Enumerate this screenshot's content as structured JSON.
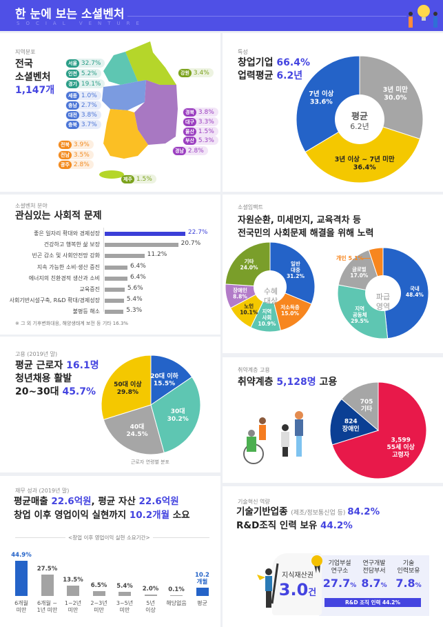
{
  "header": {
    "title": "한 눈에 보는 소셜벤처",
    "subtitle": "SOCIAL VENTURE"
  },
  "region": {
    "label": "지역분포",
    "title1": "전국",
    "title2": "소셜벤처",
    "count": "1,147개",
    "items": [
      {
        "name": "서울",
        "value": "32.7%",
        "color": "#2a9d87"
      },
      {
        "name": "인천",
        "value": "5.2%",
        "color": "#2a9d87"
      },
      {
        "name": "경기",
        "value": "19.1%",
        "color": "#2a9d87"
      },
      {
        "name": "세종",
        "value": "1.0%",
        "color": "#4a74d6"
      },
      {
        "name": "충남",
        "value": "2.7%",
        "color": "#4a74d6"
      },
      {
        "name": "대전",
        "value": "3.8%",
        "color": "#4a74d6"
      },
      {
        "name": "충북",
        "value": "3.7%",
        "color": "#4a74d6"
      },
      {
        "name": "전북",
        "value": "3.9%",
        "color": "#f28a1e"
      },
      {
        "name": "전남",
        "value": "3.5%",
        "color": "#f28a1e"
      },
      {
        "name": "광주",
        "value": "2.8%",
        "color": "#f28a1e"
      },
      {
        "name": "강원",
        "value": "3.4%",
        "color": "#7ba21c"
      },
      {
        "name": "경북",
        "value": "3.8%",
        "color": "#9b3fc0"
      },
      {
        "name": "대구",
        "value": "3.3%",
        "color": "#9b3fc0"
      },
      {
        "name": "울산",
        "value": "1.5%",
        "color": "#9b3fc0"
      },
      {
        "name": "부산",
        "value": "5.3%",
        "color": "#9b3fc0"
      },
      {
        "name": "경남",
        "value": "2.8%",
        "color": "#9b3fc0"
      },
      {
        "name": "제주",
        "value": "1.5%",
        "color": "#7ba21c"
      }
    ]
  },
  "traits": {
    "label": "특성",
    "line1a": "창업기업 ",
    "line1b": "66.4%",
    "line2a": "업력평균 ",
    "line2b": "6.2년",
    "center1": "평균",
    "center2": "6.2년"
  },
  "issues": {
    "label": "소셜벤처 분야",
    "title": "관심있는 사회적 문제",
    "note": "※ 그 외 기후변화대응, 해양생태계 보전 등 기타 16.3%",
    "items": [
      {
        "label": "좋은 일자리 확대와 경제성장",
        "value": 22.7
      },
      {
        "label": "건강하고 행복한 삶 보장",
        "value": 20.7
      },
      {
        "label": "빈곤 감소 및 사회안전망 강화",
        "value": 11.2
      },
      {
        "label": "지속 가능한 소비·생산 증진",
        "value": 6.4
      },
      {
        "label": "에너지의 친환경적 생산과 소비",
        "value": 6.4
      },
      {
        "label": "교육증진",
        "value": 5.6
      },
      {
        "label": "사회기반시설구축, R&D 확대/경제성장",
        "value": 5.4
      },
      {
        "label": "불평등 해소",
        "value": 5.3
      }
    ]
  },
  "impact": {
    "label": "소셜임팩트",
    "title1": "자원순환, 미세먼지, 교육격차 등",
    "title2": "전국민의 사회문제 해결을 위해 노력",
    "center_a": [
      "수혜",
      "대상"
    ],
    "center_b": [
      "파급",
      "영역"
    ],
    "personal_label": "개인 5.1%"
  },
  "employ": {
    "label": "고용 (2019년 말)",
    "l1a": "평균 근로자 ",
    "l1b": "16.1명",
    "l2": "청년채용 활발",
    "l3a": "20~30대 ",
    "l3b": "45.7%",
    "caption": "근로자 연령별 분포"
  },
  "vuln": {
    "label": "취약계층 고용",
    "ta": "취약계층 ",
    "tb": "5,128명",
    "tc": " 고용"
  },
  "finance": {
    "label": "재무 성과 (2019년 말)",
    "l1a": "평균매출 ",
    "l1b": "22.6억원",
    "l1c": ", 평균 자산 ",
    "l1d": "22.6억원",
    "l2a": "창업 이후 영업이익 실현까지 ",
    "l2b": "10.2개월",
    "l2c": " 소요",
    "chart_title": "<창업 이후 영업이익 실현 소요기간>"
  },
  "tech": {
    "label": "기술혁신 역량",
    "l1a": "기술기반업종 ",
    "l1b": "(제조/정보통신업 등) ",
    "l1c": "84.2%",
    "l2a": "R&D조직 인력 보유 ",
    "l2b": "44.2%",
    "ip_label": "지식재산권",
    "ip_value": "3.0",
    "ip_unit": "건",
    "cols": [
      {
        "label1": "기업부설",
        "label2": "연구소",
        "value": "27.7",
        "unit": "%"
      },
      {
        "label1": "연구개발",
        "label2": "전담부서",
        "value": "8.7",
        "unit": "%"
      },
      {
        "label1": "기술",
        "label2": "인력보유",
        "value": "7.8",
        "unit": "%"
      }
    ],
    "bar": "R&D 조직 인력 44.2%"
  },
  "chart_data": [
    {
      "type": "pie",
      "id": "tenure",
      "title": "업력",
      "slices": [
        {
          "lines": [
            "3년 미만",
            "30.0%"
          ],
          "value": 30.0,
          "color": "#a6a6a6"
        },
        {
          "lines": [
            "3년 이상 ~ 7년 미만",
            "36.4%"
          ],
          "value": 36.4,
          "color": "#f4c800",
          "dark": true
        },
        {
          "lines": [
            "7년 이상",
            "33.6%"
          ],
          "value": 33.6,
          "color": "#2463c8"
        }
      ]
    },
    {
      "type": "pie",
      "id": "beneficiary",
      "title": "수혜대상",
      "slices": [
        {
          "lines": [
            "일반",
            "대중",
            "31.2%"
          ],
          "value": 31.2,
          "color": "#2463c8"
        },
        {
          "lines": [
            "저소득층",
            "15.0%"
          ],
          "value": 15.0,
          "color": "#f7861f"
        },
        {
          "lines": [
            "지역",
            "사회",
            "10.9%"
          ],
          "value": 10.9,
          "color": "#5ec6b2"
        },
        {
          "lines": [
            "노인",
            "10.1%"
          ],
          "value": 10.1,
          "color": "#f4c800",
          "dark": true
        },
        {
          "lines": [
            "장애인",
            "8.8%"
          ],
          "value": 8.8,
          "color": "#b27bc8"
        },
        {
          "lines": [
            "기타",
            "24.0%"
          ],
          "value": 24.0,
          "color": "#7a9e2a"
        }
      ]
    },
    {
      "type": "pie",
      "id": "ripple",
      "title": "파급영역",
      "slices": [
        {
          "lines": [
            "국내",
            "48.4%"
          ],
          "value": 48.4,
          "color": "#2463c8"
        },
        {
          "lines": [
            "지역",
            "공동체",
            "29.5%"
          ],
          "value": 29.5,
          "color": "#5ec6b2"
        },
        {
          "lines": [
            "글로벌",
            "17.0%"
          ],
          "value": 17.0,
          "color": "#a6a6a6"
        },
        {
          "lines": [],
          "value": 5.1,
          "color": "#f7861f"
        }
      ]
    },
    {
      "type": "pie",
      "id": "age",
      "title": "근로자 연령별 분포",
      "slices": [
        {
          "lines": [
            "20대 이하",
            "15.5%"
          ],
          "value": 15.5,
          "color": "#2463c8"
        },
        {
          "lines": [
            "30대",
            "30.2%"
          ],
          "value": 30.2,
          "color": "#5ec6b2"
        },
        {
          "lines": [
            "40대",
            "24.5%"
          ],
          "value": 24.5,
          "color": "#a6a6a6"
        },
        {
          "lines": [
            "50대 이상",
            "29.8%"
          ],
          "value": 29.8,
          "color": "#f4c800",
          "dark": true
        }
      ]
    },
    {
      "type": "pie",
      "id": "vulnerable",
      "title": "취약계층 고용",
      "slices": [
        {
          "lines": [
            "3,599",
            "55세 이상",
            "고령자"
          ],
          "value": 3599,
          "color": "#e8194a"
        },
        {
          "lines": [
            "824",
            "장애인"
          ],
          "value": 824,
          "color": "#0b3f94"
        },
        {
          "lines": [
            "705",
            "기타"
          ],
          "value": 705,
          "color": "#a6a6a6"
        }
      ]
    },
    {
      "type": "bar",
      "id": "profit_period",
      "title": "<창업 이후 영업이익 실현 소요기간>",
      "categories": [
        [
          "6개월",
          "미만"
        ],
        [
          "6개월 ~",
          "1년 미만"
        ],
        [
          "1~2년",
          "미만"
        ],
        [
          "2~3년",
          "미만"
        ],
        [
          "3~5년",
          "미만"
        ],
        [
          "5년",
          "이상"
        ],
        [
          "해당없음"
        ],
        [
          "평균"
        ]
      ],
      "values": [
        44.9,
        27.5,
        13.5,
        6.5,
        5.4,
        2.0,
        0.1,
        10.2
      ],
      "labels": [
        "44.9%",
        "27.5%",
        "13.5%",
        "6.5%",
        "5.4%",
        "2.0%",
        "0.1%",
        "10.2\n개월"
      ],
      "highlight": [
        0,
        7
      ]
    }
  ],
  "colors": {
    "accent": "#4444e0",
    "header": "#4f50e6"
  }
}
